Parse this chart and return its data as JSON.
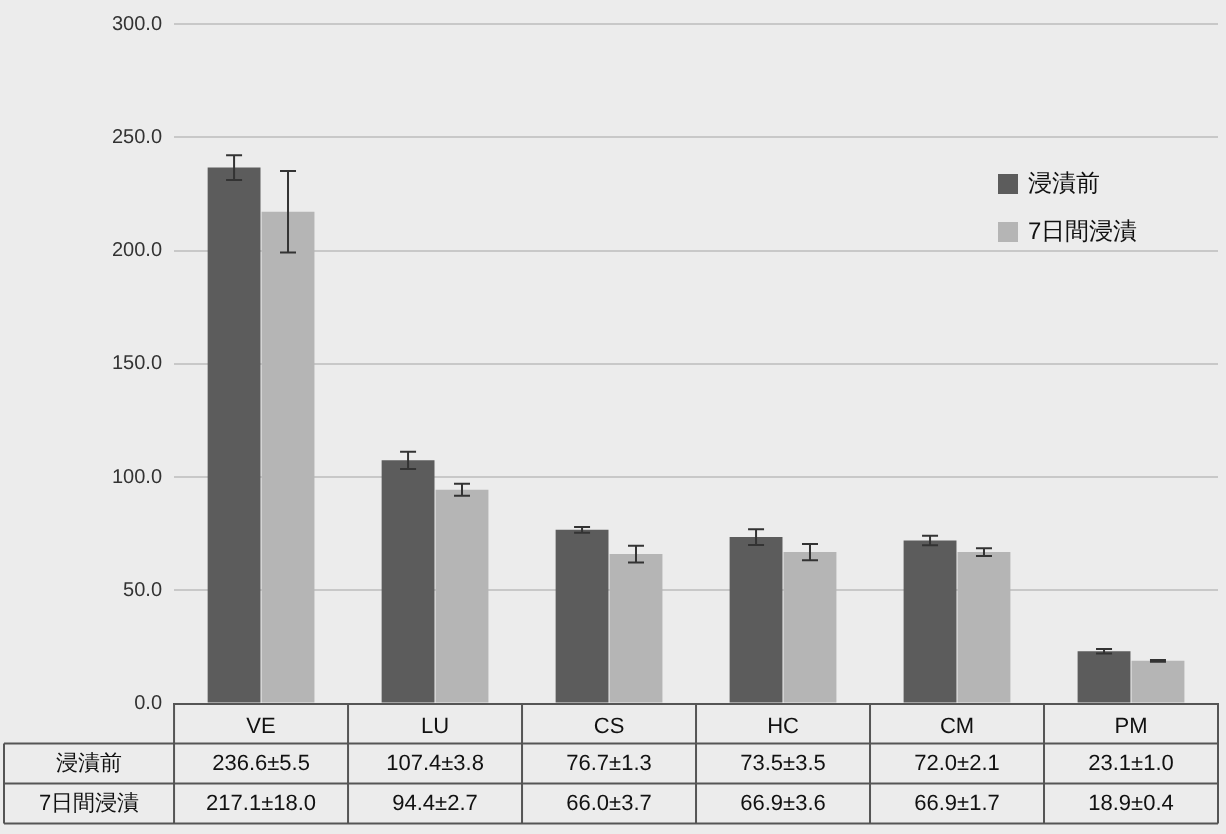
{
  "chart_data": {
    "type": "bar",
    "categories": [
      "VE",
      "LU",
      "CS",
      "HC",
      "CM",
      "PM"
    ],
    "series": [
      {
        "name": "浸漬前",
        "color": "#5c5c5c",
        "values": [
          236.6,
          107.4,
          76.7,
          73.5,
          72.0,
          23.1
        ],
        "errors": [
          5.5,
          3.8,
          1.3,
          3.5,
          2.1,
          1.0
        ],
        "value_labels": [
          "236.6±5.5",
          "107.4±3.8",
          "76.7±1.3",
          "73.5±3.5",
          "72.0±2.1",
          "23.1±1.0"
        ]
      },
      {
        "name": "7日間浸漬",
        "color": "#b5b5b5",
        "values": [
          217.1,
          94.4,
          66.0,
          66.9,
          66.9,
          18.9
        ],
        "errors": [
          18.0,
          2.7,
          3.7,
          3.6,
          1.7,
          0.4
        ],
        "value_labels": [
          "217.1±18.0",
          "94.4±2.7",
          "66.0±3.7",
          "66.9±3.6",
          "66.9±1.7",
          "18.9±0.4"
        ]
      }
    ],
    "ylim": [
      0,
      300
    ],
    "yticks": [
      {
        "value": 0,
        "label": "0.0"
      },
      {
        "value": 50,
        "label": "50.0"
      },
      {
        "value": 100,
        "label": "100.0"
      },
      {
        "value": 150,
        "label": "150.0"
      },
      {
        "value": 200,
        "label": "200.0"
      },
      {
        "value": 250,
        "label": "250.0"
      },
      {
        "value": 300,
        "label": "300.0"
      }
    ],
    "grid": "y",
    "legend": "top right"
  }
}
